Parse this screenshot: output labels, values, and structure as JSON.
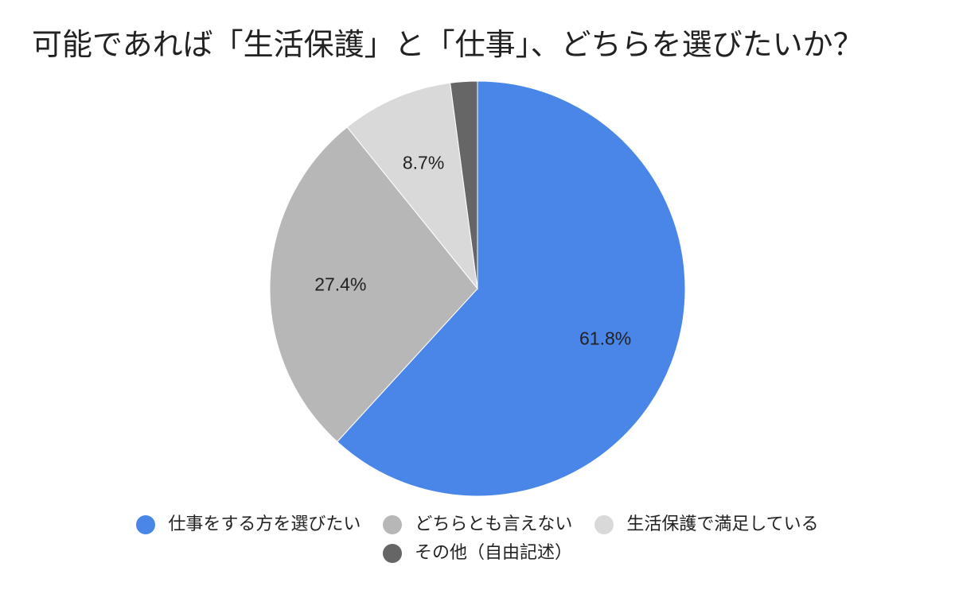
{
  "chart_data": {
    "type": "pie",
    "title": "可能であれば「生活保護」と「仕事」、どちらを選びたいか？",
    "slices": [
      {
        "label": "仕事をする方を選びたい",
        "value": 61.8,
        "display": "61.8%",
        "color": "#4a86e8"
      },
      {
        "label": "どちらとも言えない",
        "value": 27.4,
        "display": "27.4%",
        "color": "#b7b7b7"
      },
      {
        "label": "生活保護で満足している",
        "value": 8.7,
        "display": "8.7%",
        "color": "#d9d9d9"
      },
      {
        "label": "その他（自由記述）",
        "value": 2.1,
        "display": "",
        "color": "#666666"
      }
    ],
    "legend_position": "bottom"
  }
}
